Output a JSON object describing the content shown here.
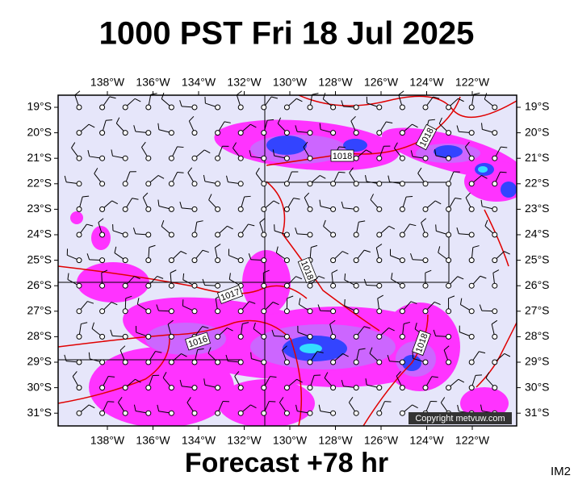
{
  "header": {
    "title": "1000 PST Fri 18 Jul 2025"
  },
  "map": {
    "longitude_labels": [
      "138°W",
      "136°W",
      "134°W",
      "132°W",
      "130°W",
      "128°W",
      "126°W",
      "124°W",
      "122°W"
    ],
    "latitude_labels": [
      "19°S",
      "20°S",
      "21°S",
      "22°S",
      "23°S",
      "24°S",
      "25°S",
      "26°S",
      "27°S",
      "28°S",
      "29°S",
      "30°S",
      "31°S"
    ],
    "isobar_labels": [
      "1018",
      "1018",
      "1018",
      "1017",
      "1016",
      "1018"
    ],
    "copyright": "Copyright metvuw.com"
  },
  "footer": {
    "caption": "Forecast +78 hr",
    "code": "IM2"
  }
}
